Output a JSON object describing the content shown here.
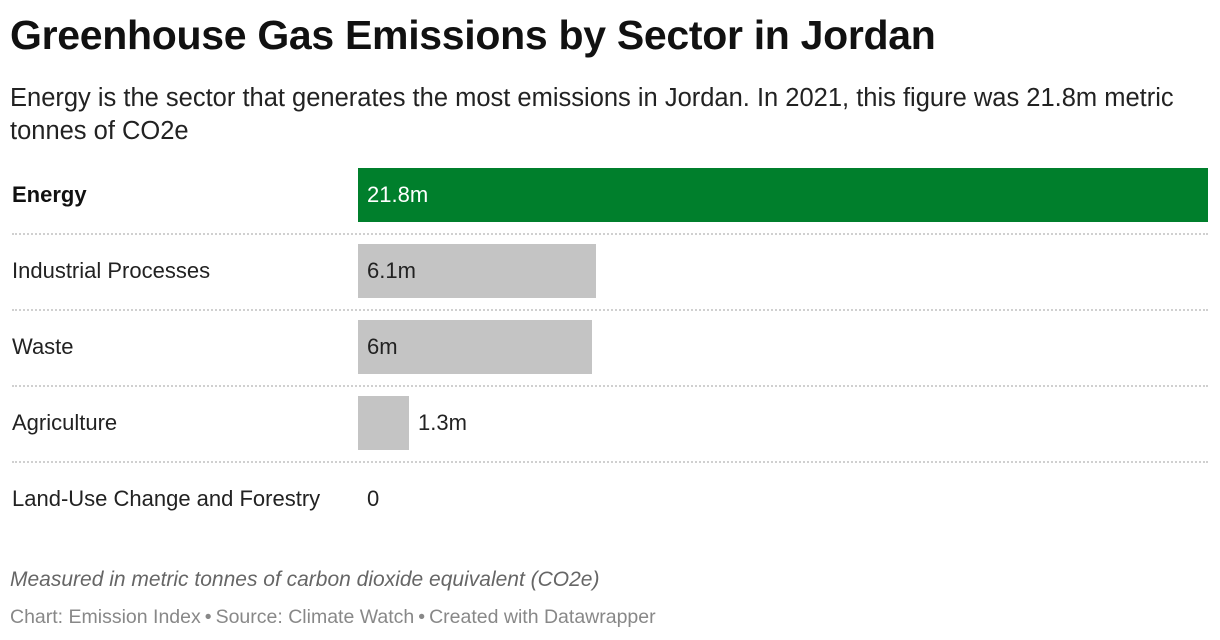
{
  "title": "Greenhouse Gas Emissions by Sector in Jordan",
  "subtitle": "Energy is the sector that generates the most emissions in Jordan. In 2021, this figure was 21.8m metric tonnes of CO2e",
  "chart_data": {
    "type": "bar",
    "orientation": "horizontal",
    "categories": [
      "Energy",
      "Industrial Processes",
      "Waste",
      "Agriculture",
      "Land-Use Change and Forestry"
    ],
    "values": [
      21.8,
      6.1,
      6.0,
      1.3,
      0
    ],
    "value_labels": [
      "21.8m",
      "6.1m",
      "6m",
      "1.3m",
      "0"
    ],
    "highlight_category": "Energy",
    "colors": {
      "highlight": "#007f2c",
      "default": "#c4c4c4",
      "label_on_highlight": "#ffffff",
      "label_default": "#222222"
    },
    "xlim": [
      0,
      21.8
    ],
    "grid": false
  },
  "notes": "Measured in metric tonnes of carbon dioxide equivalent (CO2e)",
  "footer": {
    "chart_credit": "Chart: Emission Index",
    "source": "Source: Climate Watch",
    "created_with": "Created with Datawrapper",
    "separator": "•"
  }
}
